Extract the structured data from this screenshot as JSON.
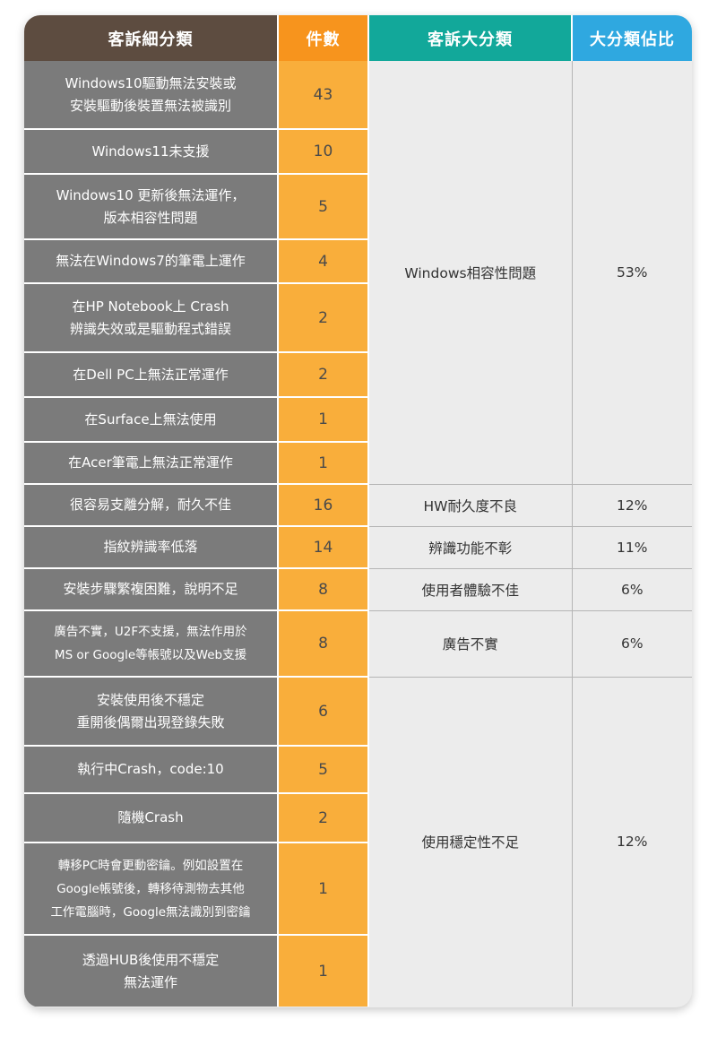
{
  "headers": {
    "sub_category": "客訴細分類",
    "count": "件數",
    "main_category": "客訴大分類",
    "share": "大分類佔比"
  },
  "rows": [
    {
      "sub": [
        "Windows10驅動無法安裝或",
        "安裝驅動後裝置無法被識別"
      ],
      "count": "43"
    },
    {
      "sub": [
        "Windows11未支援"
      ],
      "count": "10"
    },
    {
      "sub": [
        "Windows10 更新後無法運作，",
        "版本相容性問題"
      ],
      "count": "5"
    },
    {
      "sub": [
        "無法在Windows7的筆電上運作"
      ],
      "count": "4"
    },
    {
      "sub": [
        "在HP Notebook上 Crash",
        "辨識失效或是驅動程式錯誤"
      ],
      "count": "2"
    },
    {
      "sub": [
        "在Dell PC上無法正常運作"
      ],
      "count": "2"
    },
    {
      "sub": [
        "在Surface上無法使用"
      ],
      "count": "1"
    },
    {
      "sub": [
        "在Acer筆電上無法正常運作"
      ],
      "count": "1"
    },
    {
      "sub": [
        "很容易支離分解，耐久不佳"
      ],
      "count": "16"
    },
    {
      "sub": [
        "指紋辨識率低落"
      ],
      "count": "14"
    },
    {
      "sub": [
        "安裝步驟繁複困難，說明不足"
      ],
      "count": "8"
    },
    {
      "sub": [
        "廣告不實，U2F不支援，無法作用於",
        "MS or Google等帳號以及Web支援"
      ],
      "count": "8"
    },
    {
      "sub": [
        "安裝使用後不穩定",
        "重開後偶爾出現登錄失敗"
      ],
      "count": "6"
    },
    {
      "sub": [
        "執行中Crash，code:10"
      ],
      "count": "5"
    },
    {
      "sub": [
        "隨機Crash"
      ],
      "count": "2"
    },
    {
      "sub": [
        "轉移PC時會更動密鑰。例如設置在",
        "Google帳號後，轉移待測物去其他",
        "工作電腦時，Google無法識別到密鑰"
      ],
      "count": "1"
    },
    {
      "sub": [
        "透過HUB後使用不穩定",
        "無法運作"
      ],
      "count": "1"
    }
  ],
  "categories": [
    {
      "name": "Windows相容性問題",
      "share": "53%"
    },
    {
      "name": "HW耐久度不良",
      "share": "12%"
    },
    {
      "name": "辨識功能不彰",
      "share": "11%"
    },
    {
      "name": "使用者體驗不佳",
      "share": "6%"
    },
    {
      "name": "廣告不實",
      "share": "6%"
    },
    {
      "name": "使用穩定性不足",
      "share": "12%"
    }
  ]
}
